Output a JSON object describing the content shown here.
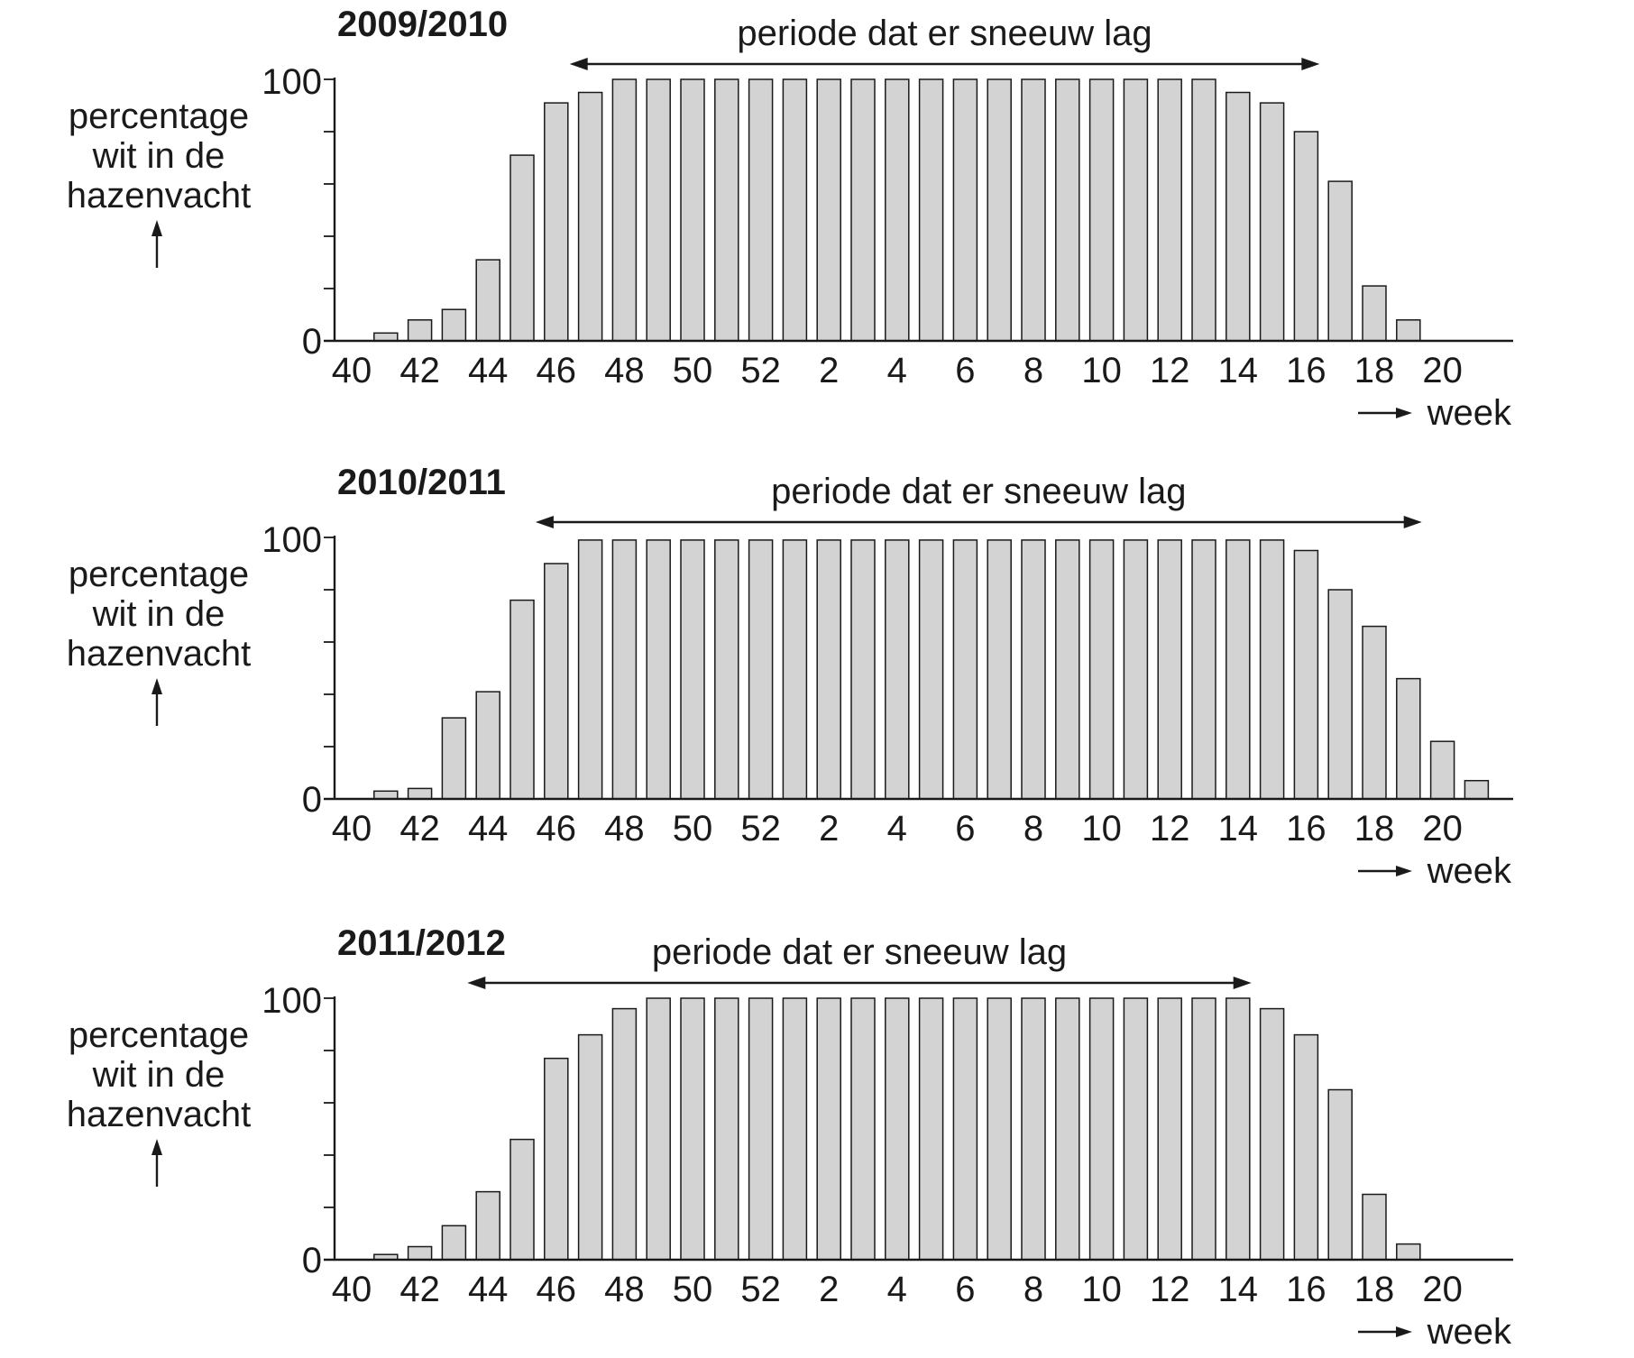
{
  "chart_data": [
    {
      "type": "bar",
      "title": "2009/2010",
      "ylabel": [
        "percentage",
        "wit in de",
        "hazenvacht"
      ],
      "xlabel": "week",
      "ylim": [
        0,
        100
      ],
      "y_ticks": [
        0,
        20,
        40,
        60,
        80,
        100
      ],
      "y_tick_labels": [
        "0",
        "100"
      ],
      "x_tick_labels": [
        "40",
        "42",
        "44",
        "46",
        "48",
        "50",
        "52",
        "2",
        "4",
        "6",
        "8",
        "10",
        "12",
        "14",
        "16",
        "18",
        "20"
      ],
      "categories": [
        "40",
        "41",
        "42",
        "43",
        "44",
        "45",
        "46",
        "47",
        "48",
        "49",
        "50",
        "51",
        "52",
        "1",
        "2",
        "3",
        "4",
        "5",
        "6",
        "7",
        "8",
        "9",
        "10",
        "11",
        "12",
        "13",
        "14",
        "15",
        "16",
        "17",
        "18",
        "19",
        "20",
        "21"
      ],
      "values": [
        0,
        3,
        8,
        12,
        31,
        71,
        91,
        95,
        100,
        100,
        100,
        100,
        100,
        100,
        100,
        100,
        100,
        100,
        100,
        100,
        100,
        100,
        100,
        100,
        100,
        100,
        95,
        91,
        80,
        61,
        21,
        8,
        0,
        0
      ],
      "snow_period": {
        "label": "periode dat er sneeuw lag",
        "start_week": "47",
        "end_week": "16"
      }
    },
    {
      "type": "bar",
      "title": "2010/2011",
      "ylabel": [
        "percentage",
        "wit in de",
        "hazenvacht"
      ],
      "xlabel": "week",
      "ylim": [
        0,
        100
      ],
      "y_ticks": [
        0,
        20,
        40,
        60,
        80,
        100
      ],
      "y_tick_labels": [
        "0",
        "100"
      ],
      "x_tick_labels": [
        "40",
        "42",
        "44",
        "46",
        "48",
        "50",
        "52",
        "2",
        "4",
        "6",
        "8",
        "10",
        "12",
        "14",
        "16",
        "18",
        "20"
      ],
      "categories": [
        "40",
        "41",
        "42",
        "43",
        "44",
        "45",
        "46",
        "47",
        "48",
        "49",
        "50",
        "51",
        "52",
        "1",
        "2",
        "3",
        "4",
        "5",
        "6",
        "7",
        "8",
        "9",
        "10",
        "11",
        "12",
        "13",
        "14",
        "15",
        "16",
        "17",
        "18",
        "19",
        "20",
        "21"
      ],
      "values": [
        0,
        3,
        4,
        31,
        41,
        76,
        90,
        99,
        99,
        99,
        99,
        99,
        99,
        99,
        99,
        99,
        99,
        99,
        99,
        99,
        99,
        99,
        99,
        99,
        99,
        99,
        99,
        99,
        95,
        80,
        66,
        46,
        22,
        7
      ],
      "snow_period": {
        "label": "periode dat er sneeuw lag",
        "start_week": "46",
        "end_week": "19"
      }
    },
    {
      "type": "bar",
      "title": "2011/2012",
      "ylabel": [
        "percentage",
        "wit in de",
        "hazenvacht"
      ],
      "xlabel": "week",
      "ylim": [
        0,
        100
      ],
      "y_ticks": [
        0,
        20,
        40,
        60,
        80,
        100
      ],
      "y_tick_labels": [
        "0",
        "100"
      ],
      "x_tick_labels": [
        "40",
        "42",
        "44",
        "46",
        "48",
        "50",
        "52",
        "2",
        "4",
        "6",
        "8",
        "10",
        "12",
        "14",
        "16",
        "18",
        "20"
      ],
      "categories": [
        "40",
        "41",
        "42",
        "43",
        "44",
        "45",
        "46",
        "47",
        "48",
        "49",
        "50",
        "51",
        "52",
        "1",
        "2",
        "3",
        "4",
        "5",
        "6",
        "7",
        "8",
        "9",
        "10",
        "11",
        "12",
        "13",
        "14",
        "15",
        "16",
        "17",
        "18",
        "19",
        "20",
        "21"
      ],
      "values": [
        0,
        2,
        5,
        13,
        26,
        46,
        77,
        86,
        96,
        100,
        100,
        100,
        100,
        100,
        100,
        100,
        100,
        100,
        100,
        100,
        100,
        100,
        100,
        100,
        100,
        100,
        100,
        96,
        86,
        65,
        25,
        6,
        0,
        0
      ],
      "snow_period": {
        "label": "periode dat er sneeuw lag",
        "start_week": "44",
        "end_week": "14"
      }
    }
  ]
}
